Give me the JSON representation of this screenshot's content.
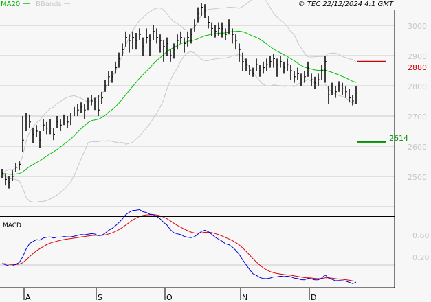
{
  "chart_data": {
    "type": "ohlc",
    "title": "",
    "copyright": "© TEC 22/12/2024 4:1 GMT",
    "legend": [
      {
        "label": "MA20",
        "color": "#00c000"
      },
      {
        "label": "BBands",
        "color": "#c8c8c8"
      }
    ],
    "legend_placement": "top-left",
    "price_axis": {
      "ticks": [
        "3000",
        "2900",
        "2800",
        "2700",
        "2600",
        "2500"
      ],
      "tick_values": [
        3000,
        2900,
        2800,
        2700,
        2600,
        2500
      ],
      "range": [
        2350,
        3085
      ],
      "grid": true
    },
    "month_labels": [
      "A",
      "S",
      "O",
      "N",
      "D"
    ],
    "month_start_bar": [
      7,
      28,
      48,
      70,
      90
    ],
    "resistance": {
      "label": "2880",
      "value": 2880,
      "color": "#cc0000"
    },
    "support": {
      "label": "2614",
      "value": 2614,
      "color": "#009000"
    },
    "bars_hlc": [
      [
        2525,
        2495,
        2510
      ],
      [
        2510,
        2470,
        2490
      ],
      [
        2500,
        2460,
        2480
      ],
      [
        2520,
        2485,
        2500
      ],
      [
        2545,
        2515,
        2530
      ],
      [
        2550,
        2520,
        2540
      ],
      [
        2700,
        2580,
        2620
      ],
      [
        2710,
        2650,
        2690
      ],
      [
        2705,
        2660,
        2680
      ],
      [
        2660,
        2610,
        2640
      ],
      [
        2670,
        2630,
        2650
      ],
      [
        2650,
        2595,
        2620
      ],
      [
        2690,
        2650,
        2670
      ],
      [
        2680,
        2640,
        2660
      ],
      [
        2690,
        2640,
        2660
      ],
      [
        2660,
        2620,
        2640
      ],
      [
        2700,
        2660,
        2680
      ],
      [
        2690,
        2650,
        2670
      ],
      [
        2705,
        2670,
        2690
      ],
      [
        2700,
        2660,
        2680
      ],
      [
        2710,
        2670,
        2690
      ],
      [
        2730,
        2700,
        2710
      ],
      [
        2740,
        2700,
        2720
      ],
      [
        2745,
        2710,
        2730
      ],
      [
        2740,
        2690,
        2720
      ],
      [
        2760,
        2720,
        2740
      ],
      [
        2770,
        2735,
        2750
      ],
      [
        2760,
        2720,
        2740
      ],
      [
        2770,
        2700,
        2720
      ],
      [
        2780,
        2740,
        2760
      ],
      [
        2820,
        2780,
        2800
      ],
      [
        2850,
        2800,
        2830
      ],
      [
        2850,
        2810,
        2830
      ],
      [
        2880,
        2840,
        2860
      ],
      [
        2910,
        2860,
        2890
      ],
      [
        2940,
        2900,
        2920
      ],
      [
        2980,
        2930,
        2960
      ],
      [
        2970,
        2910,
        2950
      ],
      [
        2980,
        2920,
        2960
      ],
      [
        2975,
        2920,
        2950
      ],
      [
        2990,
        2950,
        2970
      ],
      [
        2960,
        2900,
        2930
      ],
      [
        2990,
        2940,
        2960
      ],
      [
        2970,
        2900,
        2950
      ],
      [
        3000,
        2950,
        2980
      ],
      [
        2990,
        2940,
        2960
      ],
      [
        2970,
        2910,
        2950
      ],
      [
        2950,
        2880,
        2930
      ],
      [
        2960,
        2900,
        2940
      ],
      [
        2920,
        2880,
        2900
      ],
      [
        2940,
        2890,
        2920
      ],
      [
        2970,
        2920,
        2950
      ],
      [
        2980,
        2940,
        2960
      ],
      [
        2960,
        2910,
        2940
      ],
      [
        2980,
        2930,
        2960
      ],
      [
        2990,
        2940,
        2970
      ],
      [
        3020,
        2980,
        3000
      ],
      [
        3060,
        3010,
        3040
      ],
      [
        3075,
        3030,
        3060
      ],
      [
        3070,
        3025,
        3050
      ],
      [
        3030,
        2990,
        3010
      ],
      [
        3010,
        2965,
        2990
      ],
      [
        3000,
        2960,
        2980
      ],
      [
        3010,
        2965,
        2990
      ],
      [
        3010,
        2960,
        2990
      ],
      [
        2990,
        2950,
        2970
      ],
      [
        3020,
        2970,
        3000
      ],
      [
        2990,
        2940,
        2970
      ],
      [
        2970,
        2920,
        2950
      ],
      [
        2940,
        2880,
        2920
      ],
      [
        2910,
        2850,
        2880
      ],
      [
        2890,
        2850,
        2870
      ],
      [
        2870,
        2835,
        2850
      ],
      [
        2860,
        2830,
        2840
      ],
      [
        2890,
        2850,
        2870
      ],
      [
        2870,
        2830,
        2850
      ],
      [
        2880,
        2840,
        2860
      ],
      [
        2890,
        2850,
        2870
      ],
      [
        2900,
        2860,
        2880
      ],
      [
        2905,
        2860,
        2890
      ],
      [
        2890,
        2830,
        2870
      ],
      [
        2900,
        2860,
        2880
      ],
      [
        2880,
        2840,
        2860
      ],
      [
        2890,
        2850,
        2870
      ],
      [
        2870,
        2820,
        2850
      ],
      [
        2850,
        2810,
        2830
      ],
      [
        2860,
        2820,
        2840
      ],
      [
        2840,
        2800,
        2820
      ],
      [
        2850,
        2810,
        2830
      ],
      [
        2880,
        2830,
        2860
      ],
      [
        2840,
        2800,
        2820
      ],
      [
        2830,
        2790,
        2810
      ],
      [
        2840,
        2800,
        2820
      ],
      [
        2870,
        2820,
        2850
      ],
      [
        2900,
        2810,
        2880
      ],
      [
        2800,
        2740,
        2770
      ],
      [
        2810,
        2770,
        2790
      ],
      [
        2800,
        2760,
        2780
      ],
      [
        2815,
        2780,
        2800
      ],
      [
        2810,
        2770,
        2790
      ],
      [
        2800,
        2760,
        2780
      ],
      [
        2790,
        2745,
        2760
      ],
      [
        2770,
        2735,
        2750
      ],
      [
        2800,
        2740,
        2790
      ]
    ],
    "indicator_panel": {
      "label": "MACD",
      "ticks": [
        "0.60",
        "0.20"
      ],
      "series_colors": {
        "macd": "#0000dd",
        "signal": "#dd0000"
      }
    }
  }
}
